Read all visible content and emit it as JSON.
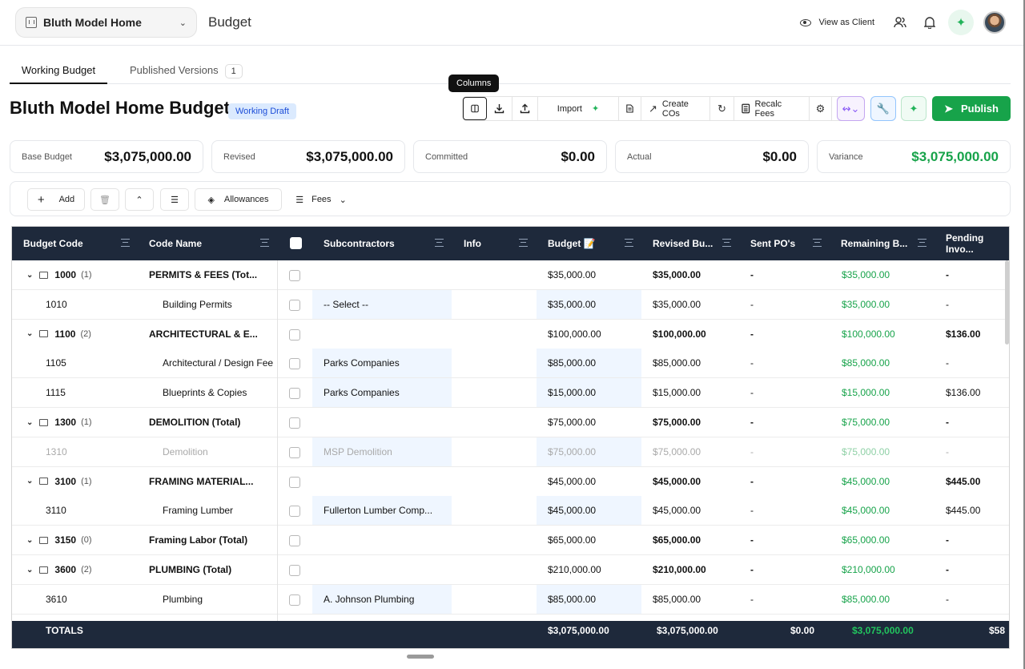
{
  "topbar": {
    "project": "Bluth Model Home",
    "page_title": "Budget",
    "view_as_client": "View as Client"
  },
  "tabs": {
    "working": "Working Budget",
    "published": "Published Versions",
    "published_count": "1"
  },
  "tooltip": "Columns",
  "header": {
    "title": "Bluth Model Home Budget",
    "status_badge": "Working Draft"
  },
  "toolbar": {
    "import": "Import",
    "create_cos": "Create COs",
    "recalc_fees": "Recalc Fees",
    "publish": "Publish"
  },
  "summary": [
    {
      "label": "Base Budget",
      "value": "$3,075,000.00"
    },
    {
      "label": "Revised",
      "value": "$3,075,000.00"
    },
    {
      "label": "Committed",
      "value": "$0.00"
    },
    {
      "label": "Actual",
      "value": "$0.00"
    },
    {
      "label": "Variance",
      "value": "$3,075,000.00"
    }
  ],
  "actions": {
    "add": "Add",
    "allowances": "Allowances",
    "fees": "Fees"
  },
  "columns": [
    "Budget Code",
    "Code Name",
    "Subcontractors",
    "Info",
    "Budget 📝",
    "Revised Bu...",
    "Sent PO's",
    "Remaining B...",
    "Pending Invo..."
  ],
  "rows": [
    {
      "type": "group",
      "code": "1000",
      "count": "(1)",
      "name": "PERMITS & FEES (Tot...",
      "sub": "",
      "budget": "$35,000.00",
      "revised": "$35,000.00",
      "sent": "-",
      "remaining": "$35,000.00",
      "pending": "-"
    },
    {
      "type": "item",
      "code": "1010",
      "name": "Building Permits",
      "sub": "-- Select --",
      "budget": "$35,000.00",
      "revised": "$35,000.00",
      "sent": "-",
      "remaining": "$35,000.00",
      "pending": "-"
    },
    {
      "type": "group",
      "code": "1100",
      "count": "(2)",
      "name": "ARCHITECTURAL & E...",
      "sub": "",
      "budget": "$100,000.00",
      "revised": "$100,000.00",
      "sent": "-",
      "remaining": "$100,000.00",
      "pending": "$136.00"
    },
    {
      "type": "item",
      "code": "1105",
      "name": "Architectural / Design Fee",
      "sub": "Parks Companies",
      "budget": "$85,000.00",
      "revised": "$85,000.00",
      "sent": "-",
      "remaining": "$85,000.00",
      "pending": "-"
    },
    {
      "type": "item",
      "code": "1115",
      "name": "Blueprints & Copies",
      "sub": "Parks Companies",
      "budget": "$15,000.00",
      "revised": "$15,000.00",
      "sent": "-",
      "remaining": "$15,000.00",
      "pending": "$136.00"
    },
    {
      "type": "group",
      "code": "1300",
      "count": "(1)",
      "name": "DEMOLITION (Total)",
      "sub": "",
      "budget": "$75,000.00",
      "revised": "$75,000.00",
      "sent": "-",
      "remaining": "$75,000.00",
      "pending": "-"
    },
    {
      "type": "fade",
      "code": "1310",
      "name": "Demolition",
      "sub": "MSP Demolition",
      "budget": "$75,000.00",
      "revised": "$75,000.00",
      "sent": "-",
      "remaining": "$75,000.00",
      "pending": "-"
    },
    {
      "type": "group",
      "code": "3100",
      "count": "(1)",
      "name": "FRAMING MATERIAL...",
      "sub": "",
      "budget": "$45,000.00",
      "revised": "$45,000.00",
      "sent": "-",
      "remaining": "$45,000.00",
      "pending": "$445.00"
    },
    {
      "type": "item",
      "code": "3110",
      "name": "Framing Lumber",
      "sub": "Fullerton Lumber Comp...",
      "budget": "$45,000.00",
      "revised": "$45,000.00",
      "sent": "-",
      "remaining": "$45,000.00",
      "pending": "$445.00"
    },
    {
      "type": "group",
      "code": "3150",
      "count": "(0)",
      "name": "Framing Labor (Total)",
      "sub": "",
      "budget": "$65,000.00",
      "revised": "$65,000.00",
      "sent": "-",
      "remaining": "$65,000.00",
      "pending": "-"
    },
    {
      "type": "group",
      "code": "3600",
      "count": "(2)",
      "name": "PLUMBING (Total)",
      "sub": "",
      "budget": "$210,000.00",
      "revised": "$210,000.00",
      "sent": "-",
      "remaining": "$210,000.00",
      "pending": "-"
    },
    {
      "type": "item",
      "code": "3610",
      "name": "Plumbing",
      "sub": "A. Johnson Plumbing",
      "budget": "$85,000.00",
      "revised": "$85,000.00",
      "sent": "-",
      "remaining": "$85,000.00",
      "pending": "-"
    }
  ],
  "totals": {
    "label": "TOTALS",
    "budget": "$3,075,000.00",
    "revised": "$3,075,000.00",
    "sent": "$0.00",
    "remaining": "$3,075,000.00",
    "pending": "$58"
  }
}
